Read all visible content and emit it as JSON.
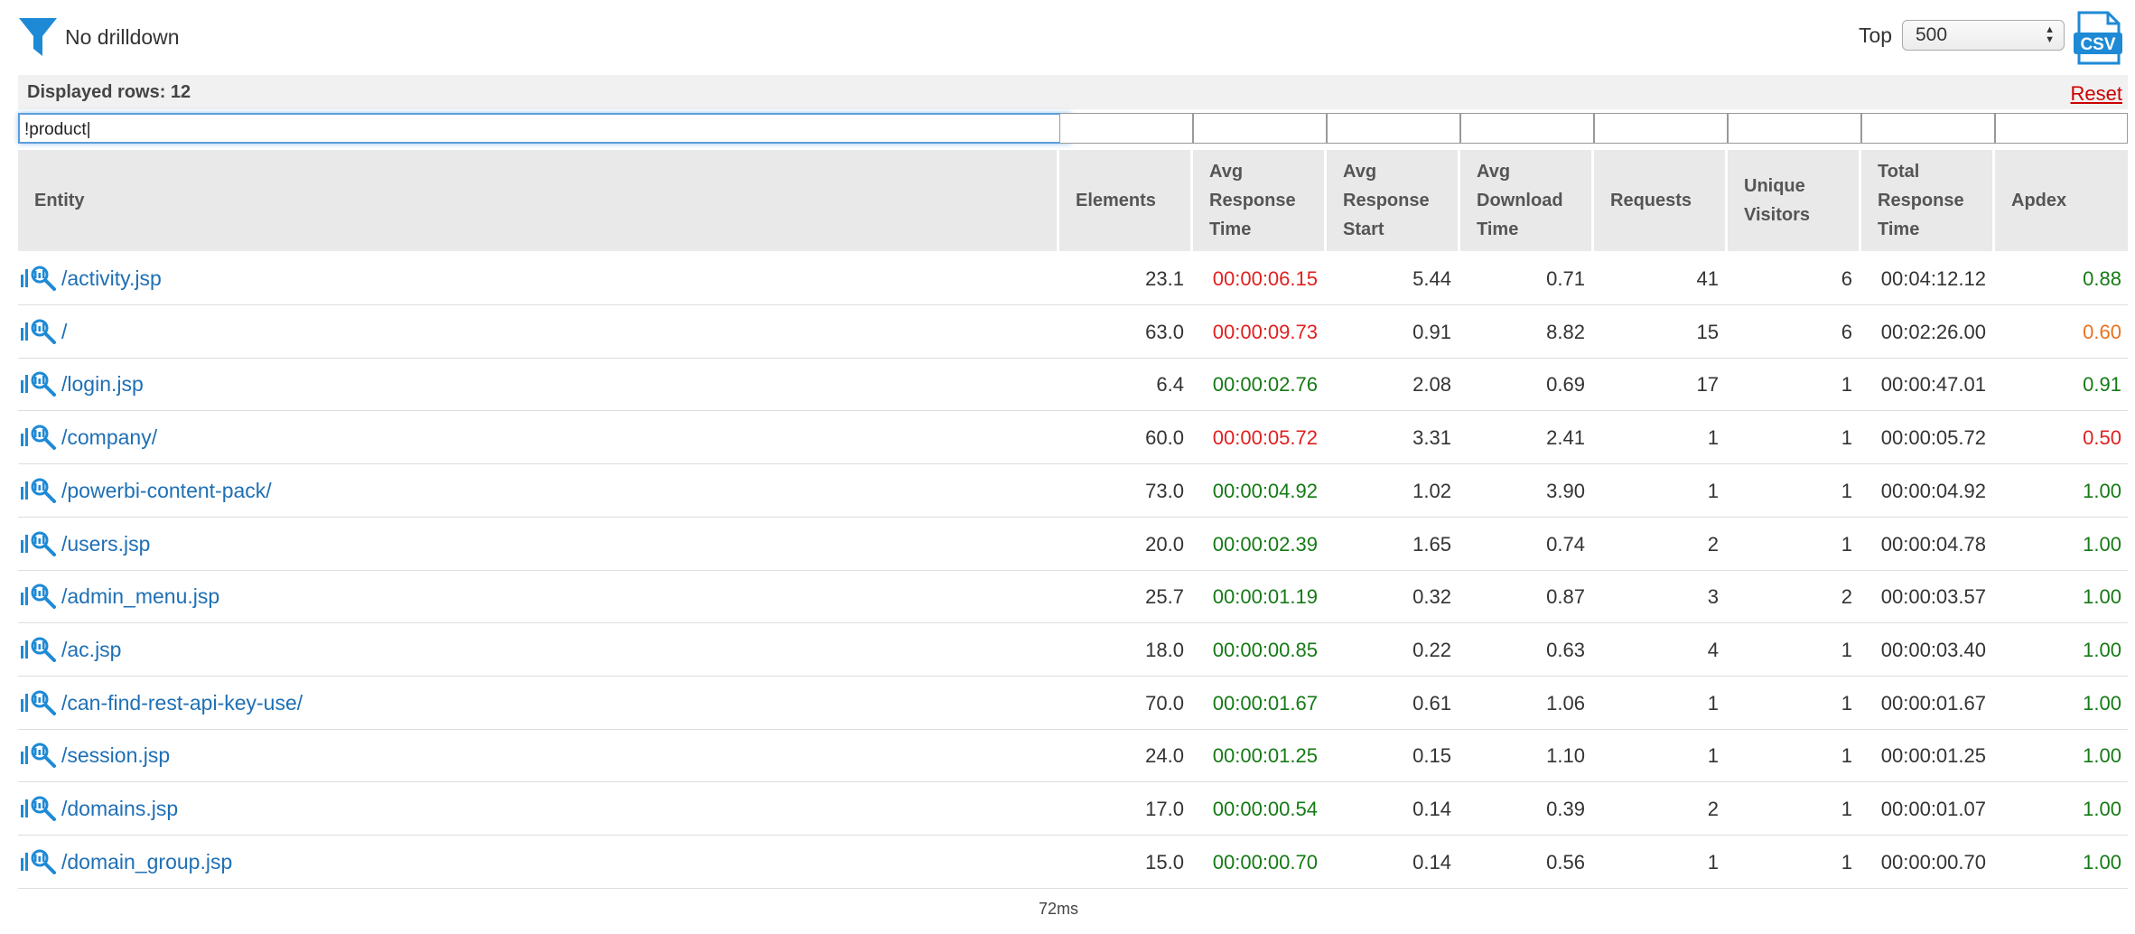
{
  "toolbar": {
    "drilldown_label": "No drilldown",
    "top_label": "Top",
    "top_value": "500",
    "csv_label": "CSV",
    "accent": "#1e8ad6"
  },
  "rows_bar": {
    "count_label": "Displayed rows: 12",
    "reset_label": "Reset"
  },
  "filter": {
    "entity_value": "!product"
  },
  "columns": [
    "Entity",
    "Elements",
    "Avg Response Time",
    "Avg Response Start",
    "Avg Download Time",
    "Requests",
    "Unique Visitors",
    "Total Response Time",
    "Apdex"
  ],
  "rows": [
    {
      "entity": "/activity.jsp",
      "elements": "23.1",
      "avg_response_time": "00:00:06.15",
      "avg_response_time_status": "red",
      "avg_response_start": "5.44",
      "avg_download_time": "0.71",
      "requests": "41",
      "unique_visitors": "6",
      "total_response_time": "00:04:12.12",
      "apdex": "0.88",
      "apdex_status": "green"
    },
    {
      "entity": "/",
      "elements": "63.0",
      "avg_response_time": "00:00:09.73",
      "avg_response_time_status": "red",
      "avg_response_start": "0.91",
      "avg_download_time": "8.82",
      "requests": "15",
      "unique_visitors": "6",
      "total_response_time": "00:02:26.00",
      "apdex": "0.60",
      "apdex_status": "orange"
    },
    {
      "entity": "/login.jsp",
      "elements": "6.4",
      "avg_response_time": "00:00:02.76",
      "avg_response_time_status": "green",
      "avg_response_start": "2.08",
      "avg_download_time": "0.69",
      "requests": "17",
      "unique_visitors": "1",
      "total_response_time": "00:00:47.01",
      "apdex": "0.91",
      "apdex_status": "green"
    },
    {
      "entity": "/company/",
      "elements": "60.0",
      "avg_response_time": "00:00:05.72",
      "avg_response_time_status": "red",
      "avg_response_start": "3.31",
      "avg_download_time": "2.41",
      "requests": "1",
      "unique_visitors": "1",
      "total_response_time": "00:00:05.72",
      "apdex": "0.50",
      "apdex_status": "red"
    },
    {
      "entity": "/powerbi-content-pack/",
      "elements": "73.0",
      "avg_response_time": "00:00:04.92",
      "avg_response_time_status": "green",
      "avg_response_start": "1.02",
      "avg_download_time": "3.90",
      "requests": "1",
      "unique_visitors": "1",
      "total_response_time": "00:00:04.92",
      "apdex": "1.00",
      "apdex_status": "green"
    },
    {
      "entity": "/users.jsp",
      "elements": "20.0",
      "avg_response_time": "00:00:02.39",
      "avg_response_time_status": "green",
      "avg_response_start": "1.65",
      "avg_download_time": "0.74",
      "requests": "2",
      "unique_visitors": "1",
      "total_response_time": "00:00:04.78",
      "apdex": "1.00",
      "apdex_status": "green"
    },
    {
      "entity": "/admin_menu.jsp",
      "elements": "25.7",
      "avg_response_time": "00:00:01.19",
      "avg_response_time_status": "green",
      "avg_response_start": "0.32",
      "avg_download_time": "0.87",
      "requests": "3",
      "unique_visitors": "2",
      "total_response_time": "00:00:03.57",
      "apdex": "1.00",
      "apdex_status": "green"
    },
    {
      "entity": "/ac.jsp",
      "elements": "18.0",
      "avg_response_time": "00:00:00.85",
      "avg_response_time_status": "green",
      "avg_response_start": "0.22",
      "avg_download_time": "0.63",
      "requests": "4",
      "unique_visitors": "1",
      "total_response_time": "00:00:03.40",
      "apdex": "1.00",
      "apdex_status": "green"
    },
    {
      "entity": "/can-find-rest-api-key-use/",
      "elements": "70.0",
      "avg_response_time": "00:00:01.67",
      "avg_response_time_status": "green",
      "avg_response_start": "0.61",
      "avg_download_time": "1.06",
      "requests": "1",
      "unique_visitors": "1",
      "total_response_time": "00:00:01.67",
      "apdex": "1.00",
      "apdex_status": "green"
    },
    {
      "entity": "/session.jsp",
      "elements": "24.0",
      "avg_response_time": "00:00:01.25",
      "avg_response_time_status": "green",
      "avg_response_start": "0.15",
      "avg_download_time": "1.10",
      "requests": "1",
      "unique_visitors": "1",
      "total_response_time": "00:00:01.25",
      "apdex": "1.00",
      "apdex_status": "green"
    },
    {
      "entity": "/domains.jsp",
      "elements": "17.0",
      "avg_response_time": "00:00:00.54",
      "avg_response_time_status": "green",
      "avg_response_start": "0.14",
      "avg_download_time": "0.39",
      "requests": "2",
      "unique_visitors": "1",
      "total_response_time": "00:00:01.07",
      "apdex": "1.00",
      "apdex_status": "green"
    },
    {
      "entity": "/domain_group.jsp",
      "elements": "15.0",
      "avg_response_time": "00:00:00.70",
      "avg_response_time_status": "green",
      "avg_response_start": "0.14",
      "avg_download_time": "0.56",
      "requests": "1",
      "unique_visitors": "1",
      "total_response_time": "00:00:00.70",
      "apdex": "1.00",
      "apdex_status": "green"
    }
  ],
  "icons": {
    "filter": "funnel-icon",
    "csv": "csv-file-icon",
    "row": "chart-search-icon"
  },
  "footer": {
    "timing": "72ms"
  }
}
